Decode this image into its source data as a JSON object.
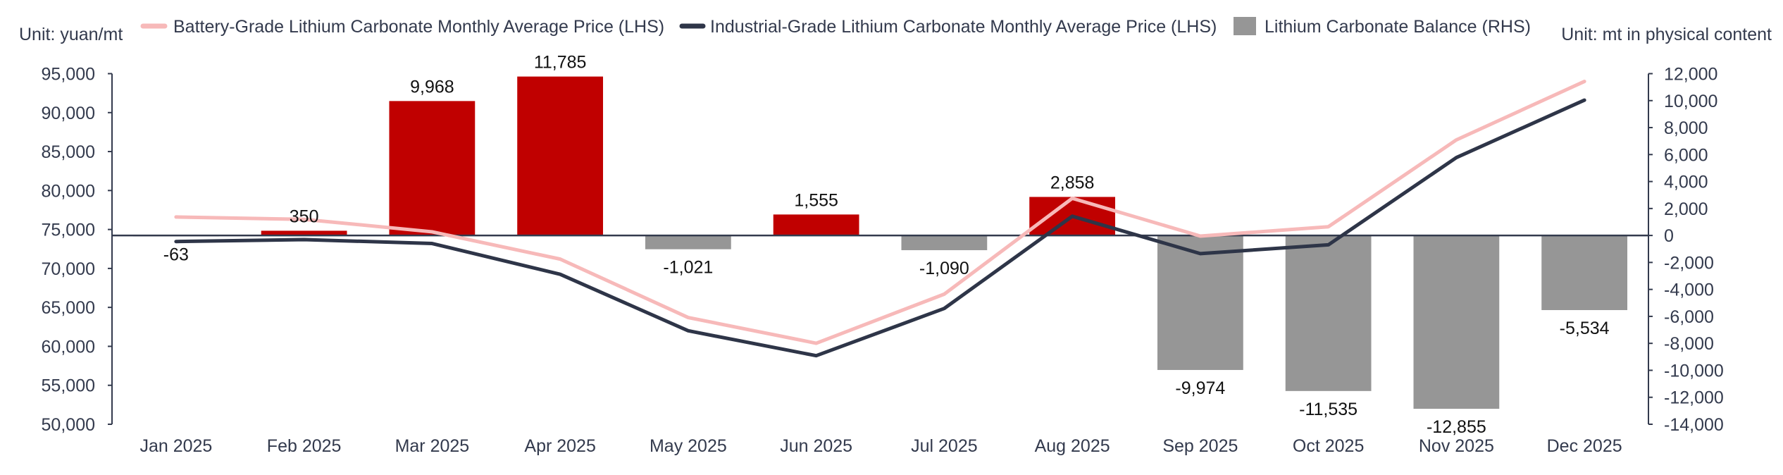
{
  "chart_data": {
    "type": "bar+line",
    "left_unit": "Unit: yuan/mt",
    "right_unit": "Unit: mt in physical content",
    "categories": [
      "Jan 2025",
      "Feb 2025",
      "Mar 2025",
      "Apr 2025",
      "May 2025",
      "Jun 2025",
      "Jul 2025",
      "Aug 2025",
      "Sep 2025",
      "Oct 2025",
      "Nov 2025",
      "Dec 2025"
    ],
    "left_axis": {
      "range": [
        50000,
        95000
      ],
      "ticks": [
        "50,000",
        "55,000",
        "60,000",
        "65,000",
        "70,000",
        "75,000",
        "80,000",
        "85,000",
        "90,000",
        "95,000"
      ]
    },
    "right_axis": {
      "range": [
        -14000,
        12000
      ],
      "ticks": [
        "-14,000",
        "-12,000",
        "-10,000",
        "-8,000",
        "-6,000",
        "-4,000",
        "-2,000",
        "0",
        "2,000",
        "4,000",
        "6,000",
        "8,000",
        "10,000",
        "12,000"
      ]
    },
    "series": [
      {
        "name": "Battery-Grade Lithium Carbonate Monthly Average Price (LHS)",
        "type": "line",
        "axis": "left",
        "color": "#f7b9b9",
        "values": [
          76600,
          76300,
          74700,
          71200,
          63700,
          60400,
          66700,
          79000,
          74150,
          75350,
          86500,
          94000
        ]
      },
      {
        "name": "Industrial-Grade Lithium Carbonate Monthly Average Price (LHS)",
        "type": "line",
        "axis": "left",
        "color": "#2e3548",
        "values": [
          73450,
          73700,
          73200,
          69250,
          62000,
          58800,
          64860,
          76700,
          71900,
          73030,
          84230,
          91600
        ]
      },
      {
        "name": "Lithium Carbonate Balance (RHS)",
        "type": "bar",
        "axis": "right",
        "color": "#969696",
        "positive_color": "#c00000",
        "values": [
          -63,
          350,
          9968,
          11785,
          -1021,
          1555,
          -1090,
          2858,
          -9974,
          -11535,
          -12855,
          -5534
        ],
        "labels": [
          "-63",
          "350",
          "9,968",
          "11,785",
          "-1,021",
          "1,555",
          "-1,090",
          "2,858",
          "-9,974",
          "-11,535",
          "-12,855",
          "-5,534"
        ]
      }
    ],
    "legend_position": "top"
  }
}
